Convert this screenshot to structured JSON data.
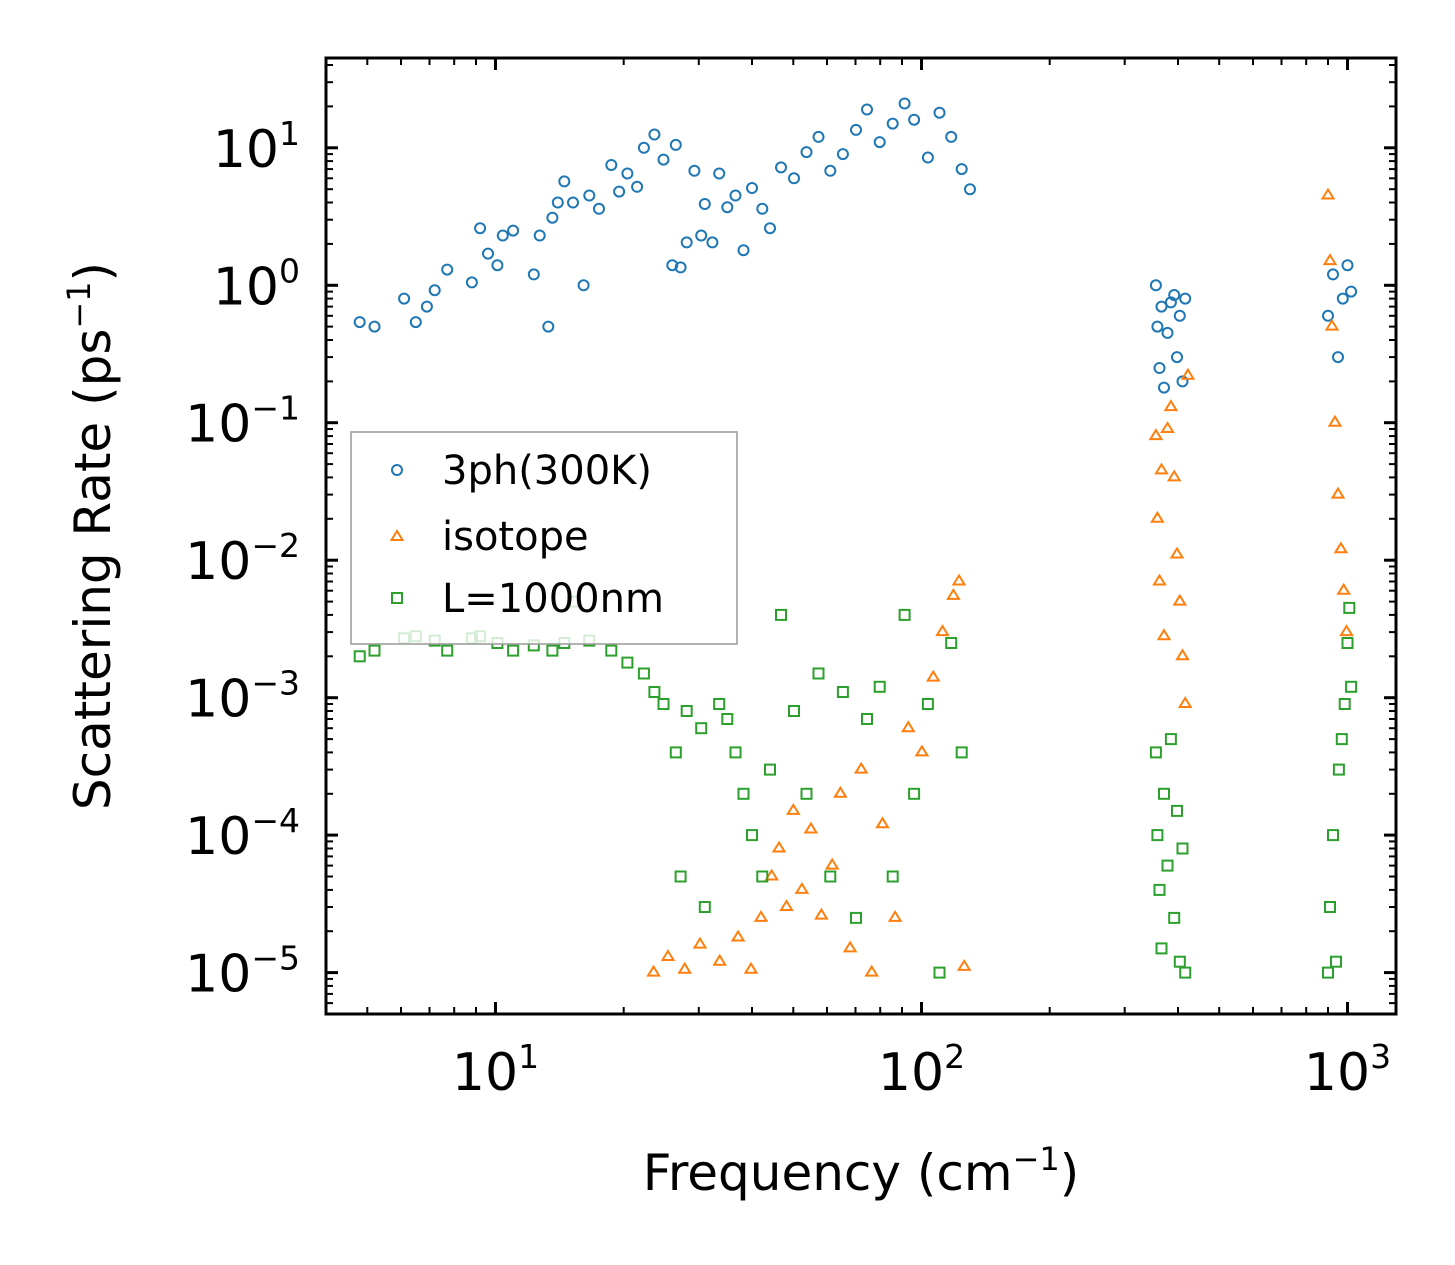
{
  "chart_data": {
    "type": "scatter",
    "xscale": "log",
    "yscale": "log",
    "xlim": [
      4,
      1300
    ],
    "ylim": [
      5e-06,
      45
    ],
    "xlabel": {
      "base": "Frequency (cm",
      "exp": "−1",
      "close": ")"
    },
    "ylabel": {
      "base": "Scattering Rate (ps",
      "exp": "−1",
      "close": ")"
    },
    "x_ticks": [
      {
        "value": 10,
        "base": "10",
        "exp": "1"
      },
      {
        "value": 100,
        "base": "10",
        "exp": "2"
      },
      {
        "value": 1000,
        "base": "10",
        "exp": "3"
      }
    ],
    "y_ticks": [
      {
        "value": 10,
        "base": "10",
        "exp": "1"
      },
      {
        "value": 1,
        "base": "10",
        "exp": "0"
      },
      {
        "value": 0.1,
        "base": "10",
        "exp": "−1"
      },
      {
        "value": 0.01,
        "base": "10",
        "exp": "−2"
      },
      {
        "value": 0.001,
        "base": "10",
        "exp": "−3"
      },
      {
        "value": 0.0001,
        "base": "10",
        "exp": "−4"
      },
      {
        "value": 1e-05,
        "base": "10",
        "exp": "−5"
      }
    ],
    "legend_position": "center-left",
    "series": [
      {
        "name": "3ph(300K)",
        "color": "#1f77b4",
        "marker": "circle",
        "points": [
          [
            4.8,
            0.54
          ],
          [
            5.2,
            0.5
          ],
          [
            6.1,
            0.8
          ],
          [
            6.5,
            0.54
          ],
          [
            6.9,
            0.7
          ],
          [
            7.2,
            0.92
          ],
          [
            7.7,
            1.3
          ],
          [
            8.8,
            1.05
          ],
          [
            9.2,
            2.6
          ],
          [
            9.6,
            1.7
          ],
          [
            10.1,
            1.4
          ],
          [
            10.4,
            2.3
          ],
          [
            11.0,
            2.5
          ],
          [
            12.3,
            1.2
          ],
          [
            12.7,
            2.3
          ],
          [
            13.3,
            0.5
          ],
          [
            13.6,
            3.1
          ],
          [
            14.0,
            4.0
          ],
          [
            14.5,
            5.7
          ],
          [
            15.2,
            4.0
          ],
          [
            16.1,
            1.0
          ],
          [
            16.6,
            4.5
          ],
          [
            17.5,
            3.6
          ],
          [
            18.7,
            7.5
          ],
          [
            19.5,
            4.8
          ],
          [
            20.4,
            6.5
          ],
          [
            21.5,
            5.2
          ],
          [
            22.3,
            10.0
          ],
          [
            23.6,
            12.5
          ],
          [
            24.8,
            8.2
          ],
          [
            26.0,
            1.4
          ],
          [
            26.5,
            10.5
          ],
          [
            27.2,
            1.35
          ],
          [
            28.1,
            2.05
          ],
          [
            29.3,
            6.8
          ],
          [
            30.4,
            2.3
          ],
          [
            31.0,
            3.9
          ],
          [
            32.3,
            2.05
          ],
          [
            33.5,
            6.5
          ],
          [
            35.0,
            3.7
          ],
          [
            36.6,
            4.5
          ],
          [
            38.2,
            1.8
          ],
          [
            40.0,
            5.1
          ],
          [
            42.3,
            3.6
          ],
          [
            44.1,
            2.6
          ],
          [
            46.8,
            7.2
          ],
          [
            50.2,
            6.0
          ],
          [
            53.7,
            9.3
          ],
          [
            57.3,
            12.0
          ],
          [
            61.1,
            6.8
          ],
          [
            65.4,
            9.0
          ],
          [
            70.2,
            13.5
          ],
          [
            74.5,
            19.0
          ],
          [
            79.8,
            11.0
          ],
          [
            85.6,
            15.0
          ],
          [
            91.3,
            21.0
          ],
          [
            96.1,
            16.0
          ],
          [
            103.5,
            8.5
          ],
          [
            110.2,
            18.0
          ],
          [
            117.4,
            12.0
          ],
          [
            124.3,
            7.0
          ],
          [
            130.0,
            5.0
          ],
          [
            355,
            1.0
          ],
          [
            358,
            0.5
          ],
          [
            362,
            0.25
          ],
          [
            366,
            0.7
          ],
          [
            371,
            0.18
          ],
          [
            378,
            0.45
          ],
          [
            385,
            0.75
          ],
          [
            392,
            0.85
          ],
          [
            398,
            0.3
          ],
          [
            404,
            0.6
          ],
          [
            410,
            0.2
          ],
          [
            416,
            0.8
          ],
          [
            900,
            0.6
          ],
          [
            925,
            1.2
          ],
          [
            950,
            0.3
          ],
          [
            975,
            0.8
          ],
          [
            1000,
            1.4
          ],
          [
            1020,
            0.9
          ]
        ]
      },
      {
        "name": "isotope",
        "color": "#ff7f0e",
        "marker": "triangle",
        "points": [
          [
            23.5,
            1e-05
          ],
          [
            25.4,
            1.3e-05
          ],
          [
            27.8,
            1.05e-05
          ],
          [
            30.2,
            1.6e-05
          ],
          [
            33.6,
            1.2e-05
          ],
          [
            37.1,
            1.8e-05
          ],
          [
            39.8,
            1.05e-05
          ],
          [
            42.0,
            2.5e-05
          ],
          [
            44.5,
            5e-05
          ],
          [
            46.3,
            8e-05
          ],
          [
            48.2,
            3e-05
          ],
          [
            50.0,
            0.00015
          ],
          [
            52.4,
            4e-05
          ],
          [
            55.0,
            0.00011
          ],
          [
            58.2,
            2.6e-05
          ],
          [
            61.7,
            6e-05
          ],
          [
            64.5,
            0.0002
          ],
          [
            68.0,
            1.5e-05
          ],
          [
            72.2,
            0.0003
          ],
          [
            76.4,
            1e-05
          ],
          [
            81.0,
            0.00012
          ],
          [
            86.7,
            2.5e-05
          ],
          [
            93.1,
            0.0006
          ],
          [
            100.2,
            0.0004
          ],
          [
            106.6,
            0.0014
          ],
          [
            112.0,
            0.003
          ],
          [
            118.8,
            0.0055
          ],
          [
            122.5,
            0.007
          ],
          [
            126.0,
            1.1e-05
          ],
          [
            355,
            0.08
          ],
          [
            358,
            0.02
          ],
          [
            362,
            0.007
          ],
          [
            366,
            0.045
          ],
          [
            371,
            0.0028
          ],
          [
            378,
            0.09
          ],
          [
            385,
            0.13
          ],
          [
            392,
            0.04
          ],
          [
            398,
            0.011
          ],
          [
            404,
            0.005
          ],
          [
            410,
            0.002
          ],
          [
            416,
            0.0009
          ],
          [
            422,
            0.22
          ],
          [
            900,
            4.5
          ],
          [
            910,
            1.5
          ],
          [
            920,
            0.5
          ],
          [
            935,
            0.1
          ],
          [
            950,
            0.03
          ],
          [
            965,
            0.012
          ],
          [
            980,
            0.006
          ],
          [
            995,
            0.003
          ]
        ]
      },
      {
        "name": "L=1000nm",
        "color": "#2ca02c",
        "marker": "square",
        "points": [
          [
            4.8,
            0.002
          ],
          [
            5.2,
            0.0022
          ],
          [
            6.1,
            0.0027
          ],
          [
            6.5,
            0.0028
          ],
          [
            7.2,
            0.0026
          ],
          [
            7.7,
            0.0022
          ],
          [
            8.8,
            0.0027
          ],
          [
            9.2,
            0.0028
          ],
          [
            10.1,
            0.0025
          ],
          [
            11.0,
            0.0022
          ],
          [
            12.3,
            0.0024
          ],
          [
            13.6,
            0.0022
          ],
          [
            14.5,
            0.0025
          ],
          [
            15.2,
            0.005
          ],
          [
            16.6,
            0.0026
          ],
          [
            18.7,
            0.0022
          ],
          [
            20.4,
            0.0018
          ],
          [
            22.3,
            0.0015
          ],
          [
            23.6,
            0.0011
          ],
          [
            24.8,
            0.0009
          ],
          [
            26.5,
            0.0004
          ],
          [
            27.2,
            5e-05
          ],
          [
            28.1,
            0.0008
          ],
          [
            30.4,
            0.0006
          ],
          [
            31.0,
            3e-05
          ],
          [
            33.5,
            0.0009
          ],
          [
            35.0,
            0.0007
          ],
          [
            36.6,
            0.0004
          ],
          [
            38.2,
            0.0002
          ],
          [
            40.0,
            0.0001
          ],
          [
            42.3,
            5e-05
          ],
          [
            44.1,
            0.0003
          ],
          [
            46.8,
            0.004
          ],
          [
            50.2,
            0.0008
          ],
          [
            53.7,
            0.0002
          ],
          [
            57.3,
            0.0015
          ],
          [
            61.1,
            5e-05
          ],
          [
            65.4,
            0.0011
          ],
          [
            70.2,
            2.5e-05
          ],
          [
            74.5,
            0.0007
          ],
          [
            79.8,
            0.0012
          ],
          [
            85.6,
            5e-05
          ],
          [
            91.3,
            0.004
          ],
          [
            96.1,
            0.0002
          ],
          [
            103.5,
            0.0009
          ],
          [
            110.2,
            1e-05
          ],
          [
            117.4,
            0.0025
          ],
          [
            124.3,
            0.0004
          ],
          [
            355,
            0.0004
          ],
          [
            358,
            0.0001
          ],
          [
            362,
            4e-05
          ],
          [
            366,
            1.5e-05
          ],
          [
            371,
            0.0002
          ],
          [
            378,
            6e-05
          ],
          [
            385,
            0.0005
          ],
          [
            392,
            2.5e-05
          ],
          [
            398,
            0.00015
          ],
          [
            404,
            1.2e-05
          ],
          [
            410,
            8e-05
          ],
          [
            416,
            1e-05
          ],
          [
            900,
            1e-05
          ],
          [
            910,
            3e-05
          ],
          [
            925,
            0.0001
          ],
          [
            940,
            1.2e-05
          ],
          [
            955,
            0.0003
          ],
          [
            970,
            0.0005
          ],
          [
            985,
            0.0009
          ],
          [
            1000,
            0.0025
          ],
          [
            1010,
            0.0045
          ],
          [
            1020,
            0.0012
          ]
        ]
      }
    ]
  }
}
